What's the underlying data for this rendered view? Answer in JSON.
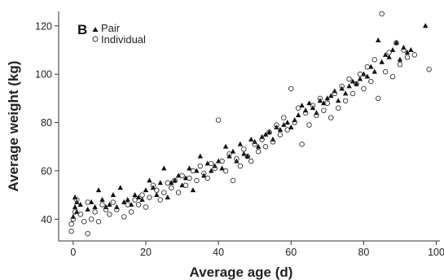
{
  "chart_data": {
    "type": "scatter",
    "panel_label": "B",
    "xlabel": "Average age (d)",
    "ylabel": "Average weight (kg)",
    "xlim": [
      -4,
      101
    ],
    "ylim": [
      31,
      126
    ],
    "xticks": [
      0,
      20,
      40,
      60,
      80,
      100
    ],
    "xtick_labels": [
      "0",
      "20",
      "40",
      "60",
      "80",
      "100"
    ],
    "yticks": [
      40,
      60,
      80,
      100,
      120
    ],
    "ytick_labels": [
      "40",
      "60",
      "80",
      "100",
      "120"
    ],
    "legend_position": "top-left",
    "grid": false,
    "series": [
      {
        "name": "Pair",
        "marker": "triangle",
        "points": [
          [
            0,
            41
          ],
          [
            0.5,
            45
          ],
          [
            0.5,
            49
          ],
          [
            1,
            47
          ],
          [
            1,
            43
          ],
          [
            2,
            46
          ],
          [
            4,
            44
          ],
          [
            5,
            47
          ],
          [
            6,
            45
          ],
          [
            7,
            52
          ],
          [
            8,
            48
          ],
          [
            9,
            45
          ],
          [
            10,
            46
          ],
          [
            11,
            50
          ],
          [
            12,
            45
          ],
          [
            13,
            53
          ],
          [
            14,
            47
          ],
          [
            15,
            48
          ],
          [
            16,
            46
          ],
          [
            17,
            50
          ],
          [
            18,
            49
          ],
          [
            19,
            48
          ],
          [
            20,
            52
          ],
          [
            21,
            56
          ],
          [
            22,
            53
          ],
          [
            23,
            50
          ],
          [
            24,
            55
          ],
          [
            25,
            61
          ],
          [
            26,
            49
          ],
          [
            27,
            55
          ],
          [
            28,
            56
          ],
          [
            29,
            58
          ],
          [
            30,
            54
          ],
          [
            31,
            57
          ],
          [
            32,
            61
          ],
          [
            33,
            52
          ],
          [
            34,
            60
          ],
          [
            35,
            66
          ],
          [
            36,
            58
          ],
          [
            37,
            63
          ],
          [
            38,
            60
          ],
          [
            39,
            62
          ],
          [
            40,
            64
          ],
          [
            41,
            61
          ],
          [
            42,
            70
          ],
          [
            43,
            66
          ],
          [
            44,
            68
          ],
          [
            45,
            64
          ],
          [
            46,
            71
          ],
          [
            47,
            67
          ],
          [
            48,
            66
          ],
          [
            49,
            73
          ],
          [
            50,
            72
          ],
          [
            51,
            70
          ],
          [
            52,
            74
          ],
          [
            53,
            75
          ],
          [
            54,
            76
          ],
          [
            55,
            73
          ],
          [
            56,
            78
          ],
          [
            57,
            77
          ],
          [
            58,
            79
          ],
          [
            59,
            80
          ],
          [
            60,
            78
          ],
          [
            61,
            81
          ],
          [
            62,
            83
          ],
          [
            63,
            87
          ],
          [
            64,
            85
          ],
          [
            65,
            88
          ],
          [
            66,
            86
          ],
          [
            67,
            84
          ],
          [
            68,
            89
          ],
          [
            69,
            88
          ],
          [
            70,
            90
          ],
          [
            71,
            91
          ],
          [
            72,
            93
          ],
          [
            73,
            89
          ],
          [
            74,
            94
          ],
          [
            75,
            92
          ],
          [
            76,
            95
          ],
          [
            77,
            97
          ],
          [
            78,
            96
          ],
          [
            79,
            98
          ],
          [
            80,
            100
          ],
          [
            81,
            99
          ],
          [
            82,
            103
          ],
          [
            83,
            101
          ],
          [
            84,
            114
          ],
          [
            85,
            105
          ],
          [
            86,
            108
          ],
          [
            87,
            107
          ],
          [
            88,
            110
          ],
          [
            89,
            113
          ],
          [
            90,
            106
          ],
          [
            91,
            111
          ],
          [
            92,
            109
          ],
          [
            93,
            110
          ],
          [
            97,
            120
          ]
        ]
      },
      {
        "name": "Individual",
        "marker": "circle",
        "points": [
          [
            -0.5,
            35
          ],
          [
            -0.5,
            38
          ],
          [
            0,
            40
          ],
          [
            0.5,
            43
          ],
          [
            1,
            48
          ],
          [
            2,
            42
          ],
          [
            3,
            39
          ],
          [
            4,
            34
          ],
          [
            4,
            47
          ],
          [
            5,
            40
          ],
          [
            6,
            43
          ],
          [
            7,
            39
          ],
          [
            8,
            46
          ],
          [
            9,
            44
          ],
          [
            10,
            42
          ],
          [
            11,
            47
          ],
          [
            12,
            44
          ],
          [
            14,
            41
          ],
          [
            15,
            46
          ],
          [
            16,
            43
          ],
          [
            17,
            48
          ],
          [
            18,
            46
          ],
          [
            19,
            50
          ],
          [
            20,
            45
          ],
          [
            21,
            49
          ],
          [
            22,
            54
          ],
          [
            23,
            52
          ],
          [
            24,
            48
          ],
          [
            25,
            51
          ],
          [
            26,
            55
          ],
          [
            27,
            53
          ],
          [
            28,
            56
          ],
          [
            29,
            51
          ],
          [
            30,
            58
          ],
          [
            31,
            54
          ],
          [
            32,
            57
          ],
          [
            33,
            60
          ],
          [
            34,
            56
          ],
          [
            35,
            62
          ],
          [
            36,
            59
          ],
          [
            37,
            57
          ],
          [
            38,
            63
          ],
          [
            39,
            61
          ],
          [
            40,
            81
          ],
          [
            41,
            64
          ],
          [
            42,
            60
          ],
          [
            43,
            67
          ],
          [
            44,
            56
          ],
          [
            45,
            65
          ],
          [
            46,
            62
          ],
          [
            47,
            69
          ],
          [
            48,
            66
          ],
          [
            49,
            64
          ],
          [
            50,
            71
          ],
          [
            51,
            68
          ],
          [
            52,
            73
          ],
          [
            53,
            70
          ],
          [
            54,
            76
          ],
          [
            55,
            72
          ],
          [
            56,
            79
          ],
          [
            57,
            75
          ],
          [
            58,
            82
          ],
          [
            59,
            77
          ],
          [
            60,
            94
          ],
          [
            61,
            80
          ],
          [
            62,
            86
          ],
          [
            63,
            71
          ],
          [
            64,
            84
          ],
          [
            65,
            79
          ],
          [
            66,
            87
          ],
          [
            67,
            83
          ],
          [
            68,
            90
          ],
          [
            69,
            85
          ],
          [
            70,
            88
          ],
          [
            71,
            82
          ],
          [
            72,
            92
          ],
          [
            73,
            86
          ],
          [
            74,
            95
          ],
          [
            75,
            89
          ],
          [
            76,
            98
          ],
          [
            77,
            92
          ],
          [
            78,
            96
          ],
          [
            79,
            100
          ],
          [
            80,
            94
          ],
          [
            81,
            103
          ],
          [
            82,
            97
          ],
          [
            83,
            106
          ],
          [
            84,
            90
          ],
          [
            85,
            125
          ],
          [
            86,
            101
          ],
          [
            87,
            109
          ],
          [
            88,
            99
          ],
          [
            89,
            113
          ],
          [
            90,
            104
          ],
          [
            91,
            110
          ],
          [
            92,
            107
          ],
          [
            94,
            108
          ],
          [
            98,
            102
          ]
        ]
      }
    ]
  }
}
